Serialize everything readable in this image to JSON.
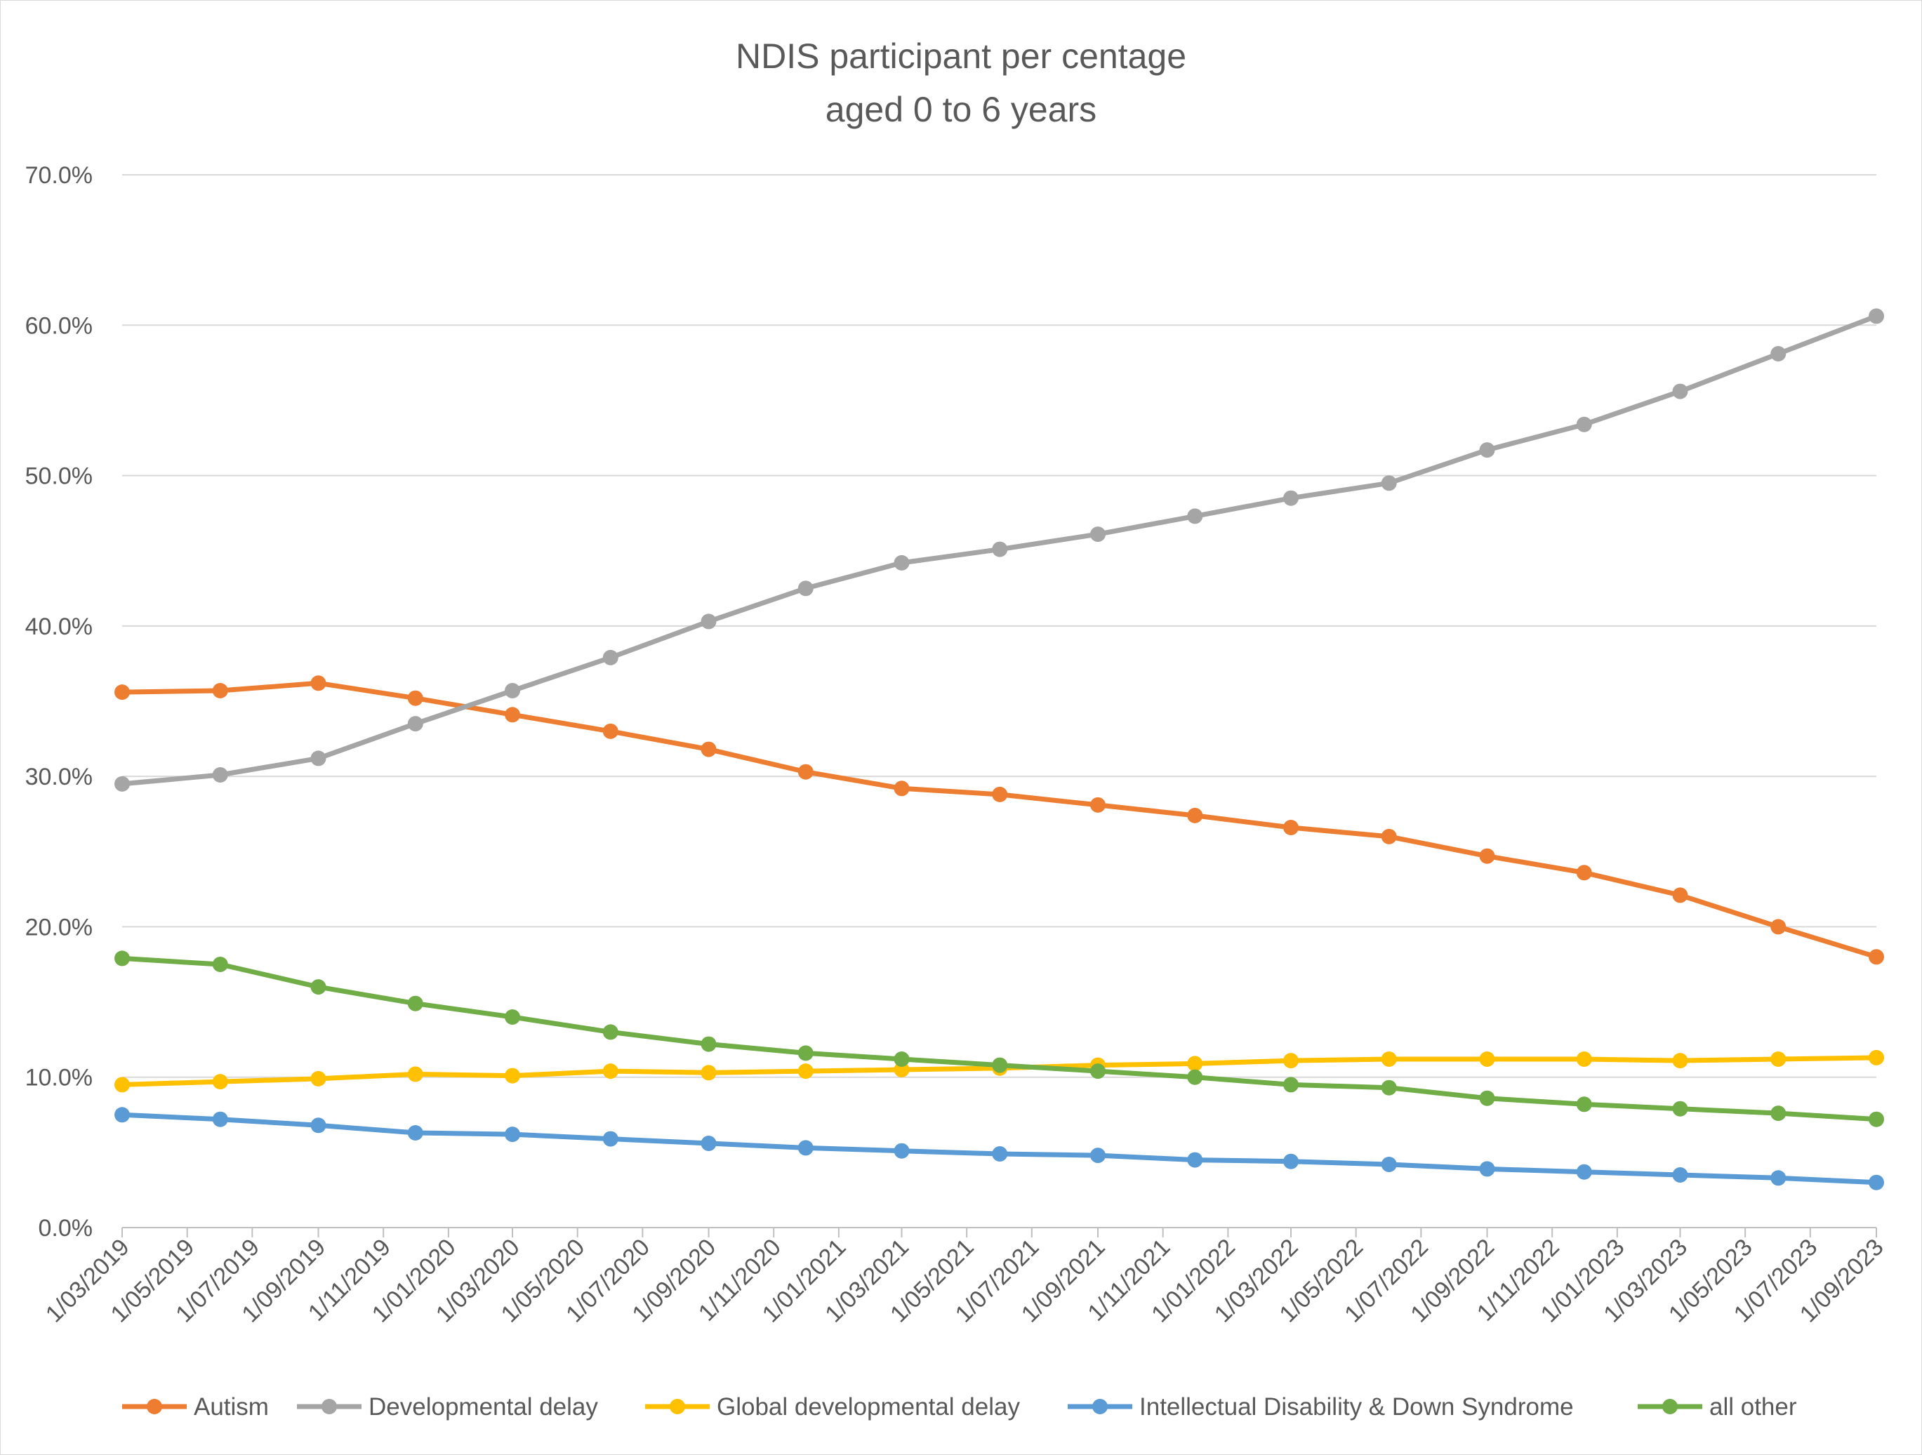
{
  "chart_data": {
    "type": "line",
    "title_lines": [
      "NDIS participant per centage",
      "aged 0 to 6 years"
    ],
    "xlabel": "",
    "ylabel": "",
    "ylim": [
      0,
      0.7
    ],
    "y_ticks": [
      0,
      0.1,
      0.2,
      0.3,
      0.4,
      0.5,
      0.6,
      0.7
    ],
    "y_tick_labels": [
      "0.0%",
      "10.0%",
      "20.0%",
      "30.0%",
      "40.0%",
      "50.0%",
      "60.0%",
      "70.0%"
    ],
    "x_range": [
      "2019-03-01",
      "2023-09-01"
    ],
    "x_tick_labels": [
      "1/03/2019",
      "1/05/2019",
      "1/07/2019",
      "1/09/2019",
      "1/11/2019",
      "1/01/2020",
      "1/03/2020",
      "1/05/2020",
      "1/07/2020",
      "1/09/2020",
      "1/11/2020",
      "1/01/2021",
      "1/03/2021",
      "1/05/2021",
      "1/07/2021",
      "1/09/2021",
      "1/11/2021",
      "1/01/2022",
      "1/03/2022",
      "1/05/2022",
      "1/07/2022",
      "1/09/2022",
      "1/11/2022",
      "1/01/2023",
      "1/03/2023",
      "1/05/2023",
      "1/07/2023",
      "1/09/2023"
    ],
    "grid": true,
    "legend_position": "bottom",
    "x": [
      "2019-03-01",
      "2019-06-01",
      "2019-09-01",
      "2019-12-01",
      "2020-03-01",
      "2020-06-01",
      "2020-09-01",
      "2020-12-01",
      "2021-03-01",
      "2021-06-01",
      "2021-09-01",
      "2021-12-01",
      "2022-03-01",
      "2022-06-01",
      "2022-09-01",
      "2022-12-01",
      "2023-03-01",
      "2023-06-01",
      "2023-09-01"
    ],
    "series": [
      {
        "name": "Autism",
        "color": "#ed7d31",
        "values": [
          0.356,
          0.357,
          0.362,
          0.352,
          0.341,
          0.33,
          0.318,
          0.303,
          0.292,
          0.288,
          0.281,
          0.274,
          0.266,
          0.26,
          0.247,
          0.236,
          0.221,
          0.2,
          0.18
        ]
      },
      {
        "name": "Developmental delay",
        "color": "#a5a5a5",
        "values": [
          0.295,
          0.301,
          0.312,
          0.335,
          0.357,
          0.379,
          0.403,
          0.425,
          0.442,
          0.451,
          0.461,
          0.473,
          0.485,
          0.495,
          0.517,
          0.534,
          0.556,
          0.581,
          0.606
        ]
      },
      {
        "name": "Global developmental delay",
        "color": "#ffc000",
        "values": [
          0.095,
          0.097,
          0.099,
          0.102,
          0.101,
          0.104,
          0.103,
          0.104,
          0.105,
          0.106,
          0.108,
          0.109,
          0.111,
          0.112,
          0.112,
          0.112,
          0.111,
          0.112,
          0.113
        ]
      },
      {
        "name": "Intellectual Disability & Down Syndrome",
        "color": "#5b9bd5",
        "values": [
          0.075,
          0.072,
          0.068,
          0.063,
          0.062,
          0.059,
          0.056,
          0.053,
          0.051,
          0.049,
          0.048,
          0.045,
          0.044,
          0.042,
          0.039,
          0.037,
          0.035,
          0.033,
          0.03
        ]
      },
      {
        "name": "all other",
        "color": "#70ad47",
        "values": [
          0.179,
          0.175,
          0.16,
          0.149,
          0.14,
          0.13,
          0.122,
          0.116,
          0.112,
          0.108,
          0.104,
          0.1,
          0.095,
          0.093,
          0.086,
          0.082,
          0.079,
          0.076,
          0.072
        ]
      }
    ]
  }
}
